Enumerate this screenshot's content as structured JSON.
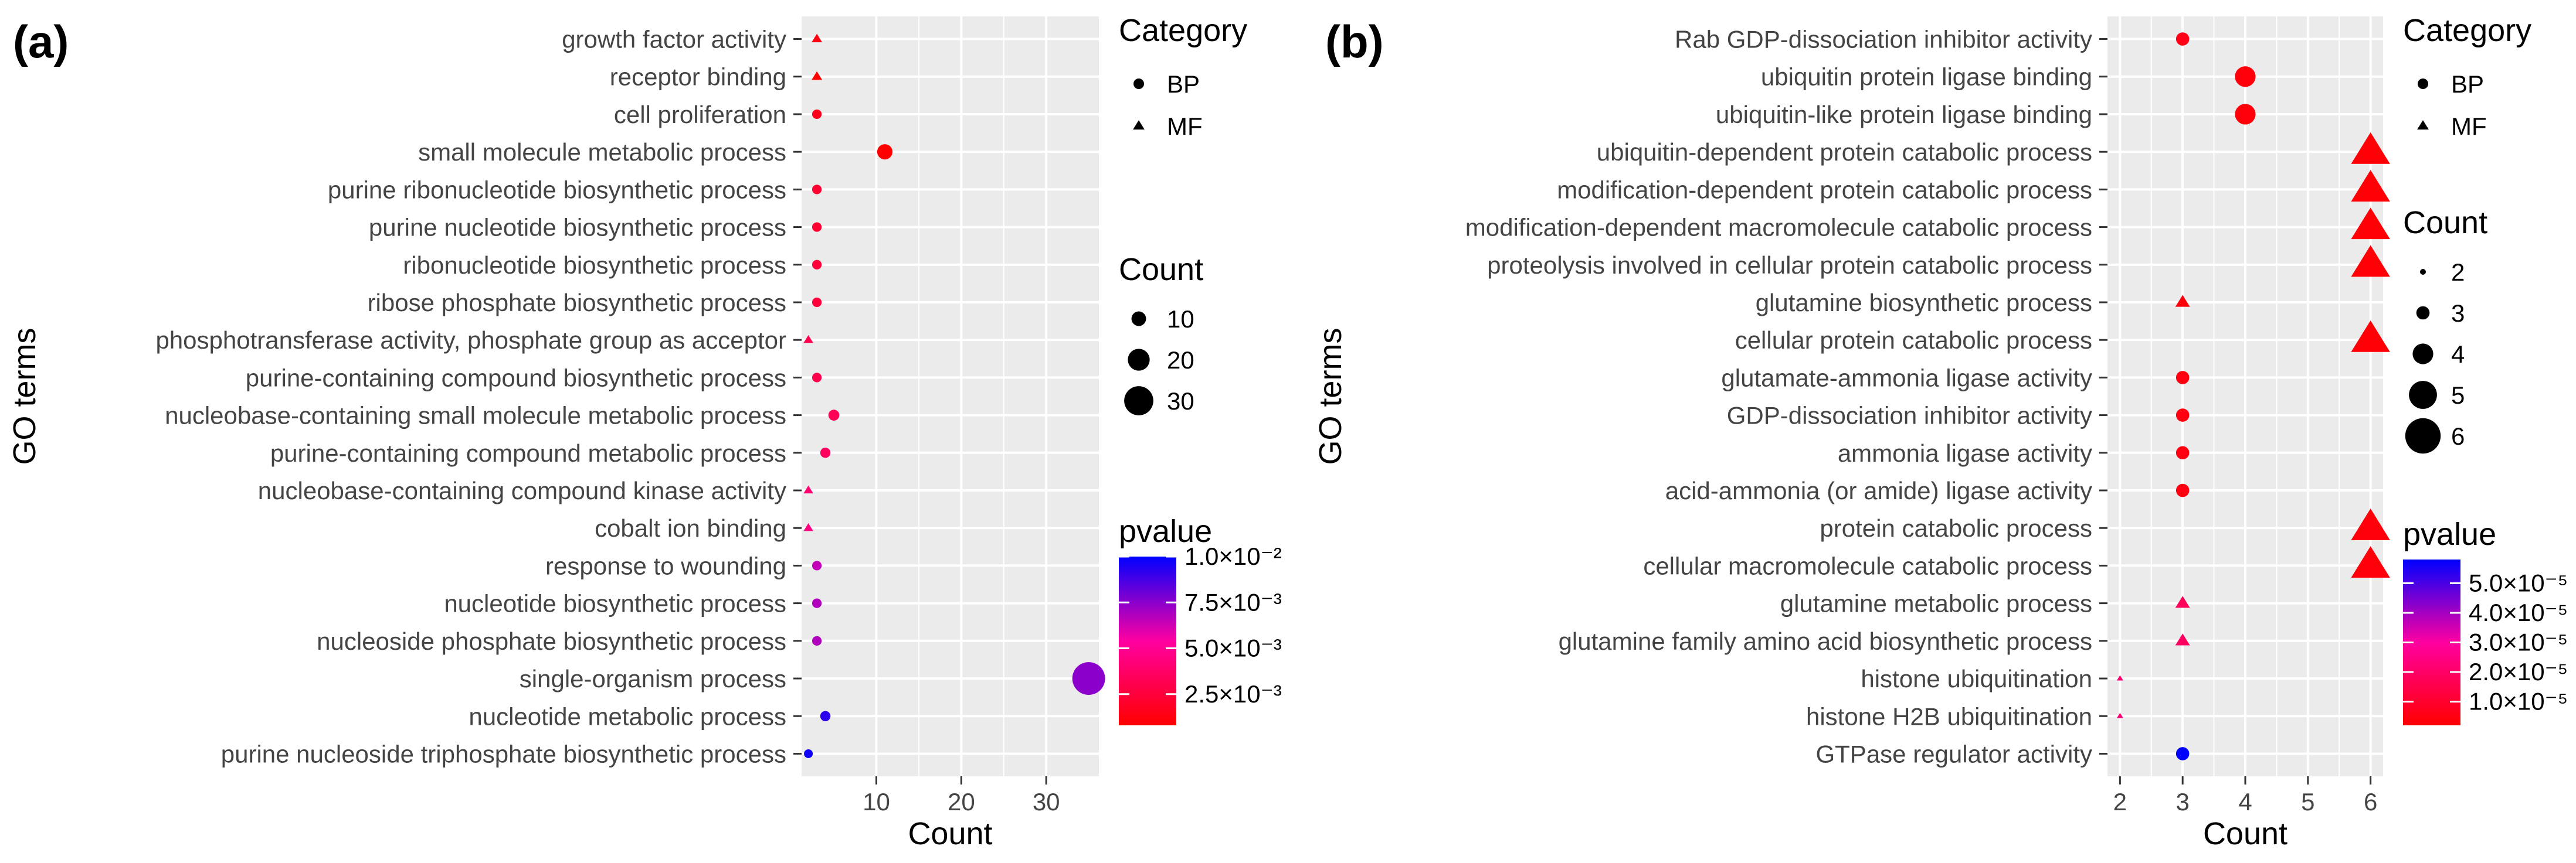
{
  "colors": {
    "panel_bg": "#EBEBEB",
    "grid": "#FFFFFF",
    "tick_text": "#444444",
    "low": "#FF0000",
    "high": "#0000FF"
  },
  "chart_data": [
    {
      "type": "scatter",
      "panel": "(a)",
      "xlabel": "Count",
      "ylabel": "GO terms",
      "xlim": [
        1.2,
        36.2
      ],
      "xticks": [
        10,
        20,
        30
      ],
      "terms": [
        {
          "term": "growth factor activity",
          "count": 3,
          "category": "MF",
          "pvalue": 0.0013
        },
        {
          "term": "receptor binding",
          "count": 3,
          "category": "MF",
          "pvalue": 0.0008
        },
        {
          "term": "cell proliferation",
          "count": 3,
          "category": "BP",
          "pvalue": 0.0016
        },
        {
          "term": "small molecule metabolic process",
          "count": 11,
          "category": "BP",
          "pvalue": 0.0008
        },
        {
          "term": "purine ribonucleotide biosynthetic process",
          "count": 3,
          "category": "BP",
          "pvalue": 0.0022
        },
        {
          "term": "purine nucleotide biosynthetic process",
          "count": 3,
          "category": "BP",
          "pvalue": 0.0022
        },
        {
          "term": "ribonucleotide biosynthetic process",
          "count": 3,
          "category": "BP",
          "pvalue": 0.0025
        },
        {
          "term": "ribose phosphate biosynthetic process",
          "count": 3,
          "category": "BP",
          "pvalue": 0.0025
        },
        {
          "term": "phosphotransferase activity, phosphate group as acceptor",
          "count": 2,
          "category": "MF",
          "pvalue": 0.003
        },
        {
          "term": "purine-containing compound biosynthetic process",
          "count": 3,
          "category": "BP",
          "pvalue": 0.003
        },
        {
          "term": "nucleobase-containing small molecule metabolic process",
          "count": 5,
          "category": "BP",
          "pvalue": 0.0033
        },
        {
          "term": "purine-containing compound metabolic process",
          "count": 4,
          "category": "BP",
          "pvalue": 0.0035
        },
        {
          "term": "nucleobase-containing compound kinase activity",
          "count": 2,
          "category": "MF",
          "pvalue": 0.004
        },
        {
          "term": "cobalt ion binding",
          "count": 2,
          "category": "MF",
          "pvalue": 0.0045
        },
        {
          "term": "response to wounding",
          "count": 3,
          "category": "BP",
          "pvalue": 0.0065
        },
        {
          "term": "nucleotide biosynthetic process",
          "count": 3,
          "category": "BP",
          "pvalue": 0.0068
        },
        {
          "term": "nucleoside phosphate biosynthetic process",
          "count": 3,
          "category": "BP",
          "pvalue": 0.0068
        },
        {
          "term": "single-organism process",
          "count": 35,
          "category": "BP",
          "pvalue": 0.0075
        },
        {
          "term": "nucleotide metabolic process",
          "count": 4,
          "category": "BP",
          "pvalue": 0.0092
        },
        {
          "term": "purine nucleoside triphosphate biosynthetic process",
          "count": 2,
          "category": "BP",
          "pvalue": 0.0097
        }
      ],
      "legend": {
        "category_title": "Category",
        "category_items": [
          "BP",
          "MF"
        ],
        "count_title": "Count",
        "count_items": [
          "10",
          "20",
          "30"
        ],
        "count_values": [
          10,
          20,
          30
        ],
        "pvalue_title": "pvalue",
        "pvalue_range": [
          0.0008,
          0.01
        ],
        "pvalue_ticks": [
          "1.0×10⁻²",
          "7.5×10⁻³",
          "5.0×10⁻³",
          "2.5×10⁻³"
        ],
        "pvalue_tick_values": [
          0.01,
          0.0075,
          0.005,
          0.0025
        ]
      }
    },
    {
      "type": "scatter",
      "panel": "(b)",
      "xlabel": "Count",
      "ylabel": "GO terms",
      "xlim": [
        1.8,
        6.2
      ],
      "xticks": [
        2,
        3,
        4,
        5,
        6
      ],
      "terms": [
        {
          "term": "Rab GDP-dissociation inhibitor activity",
          "count": 3,
          "category": "BP",
          "pvalue": 6e-06
        },
        {
          "term": "ubiquitin protein ligase binding",
          "count": 4,
          "category": "BP",
          "pvalue": 4e-06
        },
        {
          "term": "ubiquitin-like protein ligase binding",
          "count": 4,
          "category": "BP",
          "pvalue": 4e-06
        },
        {
          "term": "ubiquitin-dependent protein catabolic process",
          "count": 6,
          "category": "MF",
          "pvalue": 3e-06
        },
        {
          "term": "modification-dependent protein catabolic process",
          "count": 6,
          "category": "MF",
          "pvalue": 3e-06
        },
        {
          "term": "modification-dependent macromolecule catabolic process",
          "count": 6,
          "category": "MF",
          "pvalue": 3e-06
        },
        {
          "term": "proteolysis involved in cellular protein catabolic process",
          "count": 6,
          "category": "MF",
          "pvalue": 3e-06
        },
        {
          "term": "glutamine biosynthetic process",
          "count": 3,
          "category": "MF",
          "pvalue": 4e-06
        },
        {
          "term": "cellular protein catabolic process",
          "count": 6,
          "category": "MF",
          "pvalue": 3e-06
        },
        {
          "term": "glutamate-ammonia ligase activity",
          "count": 3,
          "category": "BP",
          "pvalue": 5e-06
        },
        {
          "term": "GDP-dissociation inhibitor activity",
          "count": 3,
          "category": "BP",
          "pvalue": 5e-06
        },
        {
          "term": "ammonia ligase activity",
          "count": 3,
          "category": "BP",
          "pvalue": 5e-06
        },
        {
          "term": "acid-ammonia (or amide) ligase activity",
          "count": 3,
          "category": "BP",
          "pvalue": 5e-06
        },
        {
          "term": "protein catabolic process",
          "count": 6,
          "category": "MF",
          "pvalue": 4e-06
        },
        {
          "term": "cellular macromolecule catabolic process",
          "count": 6,
          "category": "MF",
          "pvalue": 4e-06
        },
        {
          "term": "glutamine metabolic process",
          "count": 3,
          "category": "MF",
          "pvalue": 1.8e-05
        },
        {
          "term": "glutamine family amino acid biosynthetic process",
          "count": 3,
          "category": "MF",
          "pvalue": 1.9e-05
        },
        {
          "term": "histone ubiquitination",
          "count": 2,
          "category": "MF",
          "pvalue": 2.1e-05
        },
        {
          "term": "histone H2B ubiquitination",
          "count": 2,
          "category": "MF",
          "pvalue": 2.2e-05
        },
        {
          "term": "GTPase regulator activity",
          "count": 3,
          "category": "BP",
          "pvalue": 5.8e-05
        }
      ],
      "legend": {
        "category_title": "Category",
        "category_items": [
          "BP",
          "MF"
        ],
        "count_title": "Count",
        "count_items": [
          "2",
          "3",
          "4",
          "5",
          "6"
        ],
        "count_values": [
          2,
          3,
          4,
          5,
          6
        ],
        "pvalue_title": "pvalue",
        "pvalue_range": [
          2e-06,
          5.8e-05
        ],
        "pvalue_ticks": [
          "5.0×10⁻⁵",
          "4.0×10⁻⁵",
          "3.0×10⁻⁵",
          "2.0×10⁻⁵",
          "1.0×10⁻⁵"
        ],
        "pvalue_tick_values": [
          5e-05,
          4e-05,
          3e-05,
          2e-05,
          1e-05
        ]
      }
    }
  ]
}
